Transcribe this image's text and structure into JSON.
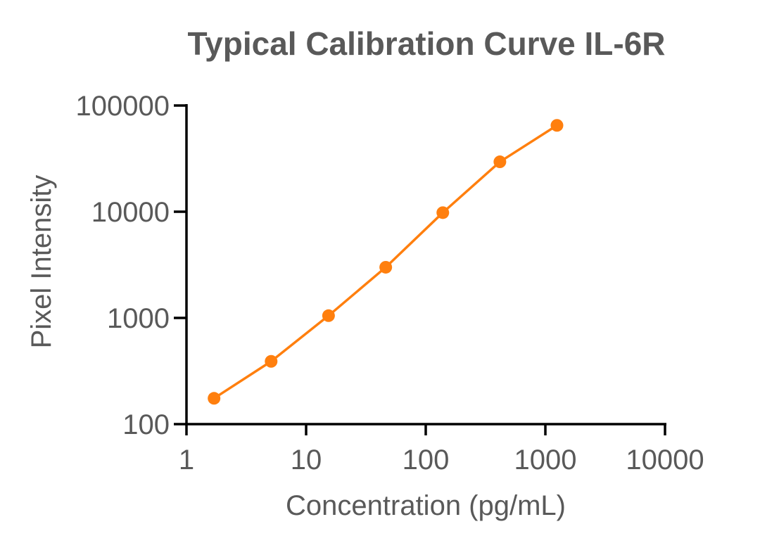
{
  "chart_data": {
    "type": "line",
    "title": "Typical Calibration Curve IL-6R",
    "xlabel": "Concentration (pg/mL)",
    "ylabel": "Pixel Intensity",
    "xscale": "log",
    "yscale": "log",
    "xlim": [
      1,
      10000
    ],
    "ylim": [
      100,
      100000
    ],
    "x_ticks": [
      1,
      10,
      100,
      1000,
      10000
    ],
    "x_tick_labels": [
      "1",
      "10",
      "100",
      "1000",
      "10000"
    ],
    "y_ticks": [
      100,
      1000,
      10000,
      100000
    ],
    "y_tick_labels": [
      "100",
      "1000",
      "10000",
      "100000"
    ],
    "grid": false,
    "series": [
      {
        "name": "IL-6R",
        "color": "#FF7F0E",
        "x": [
          1.7,
          5.1,
          15.4,
          46.3,
          138.9,
          416.7,
          1250
        ],
        "y": [
          175,
          390,
          1050,
          3000,
          9800,
          29500,
          65000
        ]
      }
    ]
  }
}
